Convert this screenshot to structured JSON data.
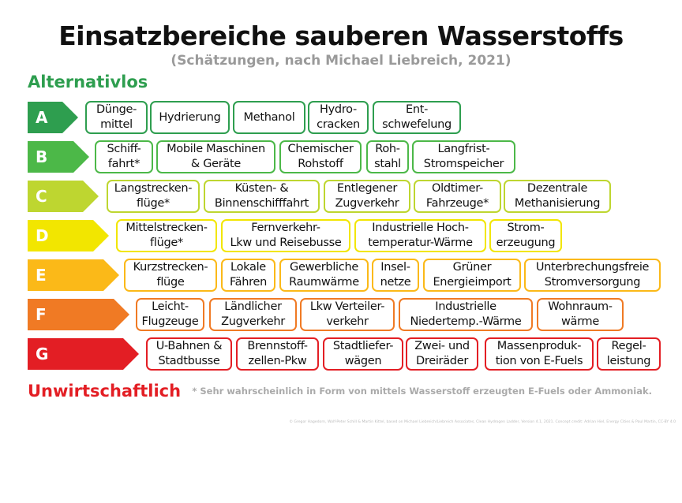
{
  "title": "Einsatzbereiche sauberen Wasserstoffs",
  "subtitle": "(Schätzungen, nach Michael Liebreich, 2021)",
  "top_label": "Alternativlos",
  "bottom_label": "Unwirtschaftlich",
  "footnote": "* Sehr wahrscheinlich in Form von mittels Wasserstoff erzeugten E-Fuels oder Ammoniak.",
  "credit": "© Gregor Hagedorn, Wolf-Peter Schill & Martin Kittel, based on Michael Liebreich/Liebreich Associates, Clean Hydrogen Ladder, Version 4.1, 2021. Concept credit: Adrian Hiel, Energy Cities & Paul Martin, CC-BY 4.0",
  "rows": [
    {
      "grade": "A",
      "color": "#2e9e4f",
      "items": [
        "Dünge-\nmittel",
        "Hydrierung",
        "Methanol",
        "Hydro-\ncracken",
        "Ent-\nschwefelung"
      ]
    },
    {
      "grade": "B",
      "color": "#4cb848",
      "items": [
        "Schiff-\nfahrt*",
        "Mobile Maschinen\n& Geräte",
        "Chemischer\nRohstoff",
        "Roh-\nstahl",
        "Langfrist-\nStromspeicher"
      ]
    },
    {
      "grade": "C",
      "color": "#bed630",
      "items": [
        "Langstrecken-\nflüge*",
        "Küsten- &\nBinnenschifffahrt",
        "Entlegener\nZugverkehr",
        "Oldtimer-\nFahrzeuge*",
        "Dezentrale\nMethanisierung"
      ]
    },
    {
      "grade": "D",
      "color": "#f2e600",
      "items": [
        "Mittelstrecken-\nflüge*",
        "Fernverkehr-\nLkw und Reisebusse",
        "Industrielle Hoch-\ntemperatur-Wärme",
        "Strom-\nerzeugung"
      ]
    },
    {
      "grade": "E",
      "color": "#fbb918",
      "items": [
        "Kurzstrecken-\nflüge",
        "Lokale\nFähren",
        "Gewerbliche\nRaumwärme",
        "Insel-\nnetze",
        "Grüner\nEnergieimport",
        "Unterbrechungsfreie\nStromversorgung"
      ]
    },
    {
      "grade": "F",
      "color": "#f07a24",
      "items": [
        "Leicht-\nFlugzeuge",
        "Ländlicher\nZugverkehr",
        "Lkw Verteiler-\nverkehr",
        "Industrielle\nNiedertemp.-Wärme",
        "Wohnraum-\nwärme"
      ]
    },
    {
      "grade": "G",
      "color": "#e31e24",
      "items": [
        "U-Bahnen &\nStadtbusse",
        "Brennstoff-\nzellen-Pkw",
        "Stadtliefer-\nwägen",
        "Zwei- und\nDreiräder",
        "Massenproduk-\ntion von E-Fuels",
        "Regel-\nleistung"
      ]
    }
  ]
}
